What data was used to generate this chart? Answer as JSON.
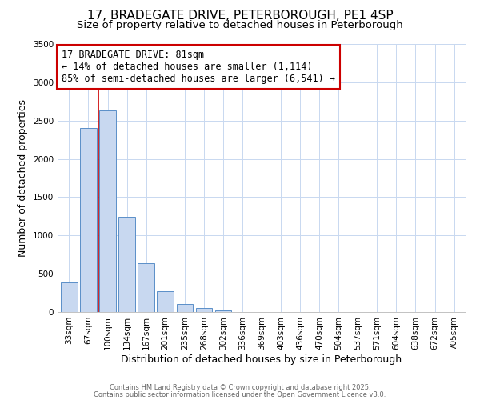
{
  "title": "17, BRADEGATE DRIVE, PETERBOROUGH, PE1 4SP",
  "subtitle": "Size of property relative to detached houses in Peterborough",
  "xlabel": "Distribution of detached houses by size in Peterborough",
  "ylabel": "Number of detached properties",
  "categories": [
    "33sqm",
    "67sqm",
    "100sqm",
    "134sqm",
    "167sqm",
    "201sqm",
    "235sqm",
    "268sqm",
    "302sqm",
    "336sqm",
    "369sqm",
    "403sqm",
    "436sqm",
    "470sqm",
    "504sqm",
    "537sqm",
    "571sqm",
    "604sqm",
    "638sqm",
    "672sqm",
    "705sqm"
  ],
  "values": [
    390,
    2400,
    2630,
    1240,
    640,
    270,
    100,
    55,
    20,
    5,
    2,
    1,
    0,
    0,
    0,
    0,
    0,
    0,
    0,
    0,
    0
  ],
  "bar_color": "#c8d8f0",
  "bar_edge_color": "#5a8fc8",
  "vline_x_index": 1.5,
  "vline_color": "#cc0000",
  "annotation_text": "17 BRADEGATE DRIVE: 81sqm\n← 14% of detached houses are smaller (1,114)\n85% of semi-detached houses are larger (6,541) →",
  "annotation_box_color": "#ffffff",
  "annotation_box_edge": "#cc0000",
  "ylim": [
    0,
    3500
  ],
  "yticks": [
    0,
    500,
    1000,
    1500,
    2000,
    2500,
    3000,
    3500
  ],
  "background_color": "#ffffff",
  "grid_color": "#c8d8f0",
  "footer1": "Contains HM Land Registry data © Crown copyright and database right 2025.",
  "footer2": "Contains public sector information licensed under the Open Government Licence v3.0.",
  "title_fontsize": 11,
  "subtitle_fontsize": 9.5,
  "axis_label_fontsize": 9,
  "tick_fontsize": 7.5,
  "annotation_fontsize": 8.5
}
